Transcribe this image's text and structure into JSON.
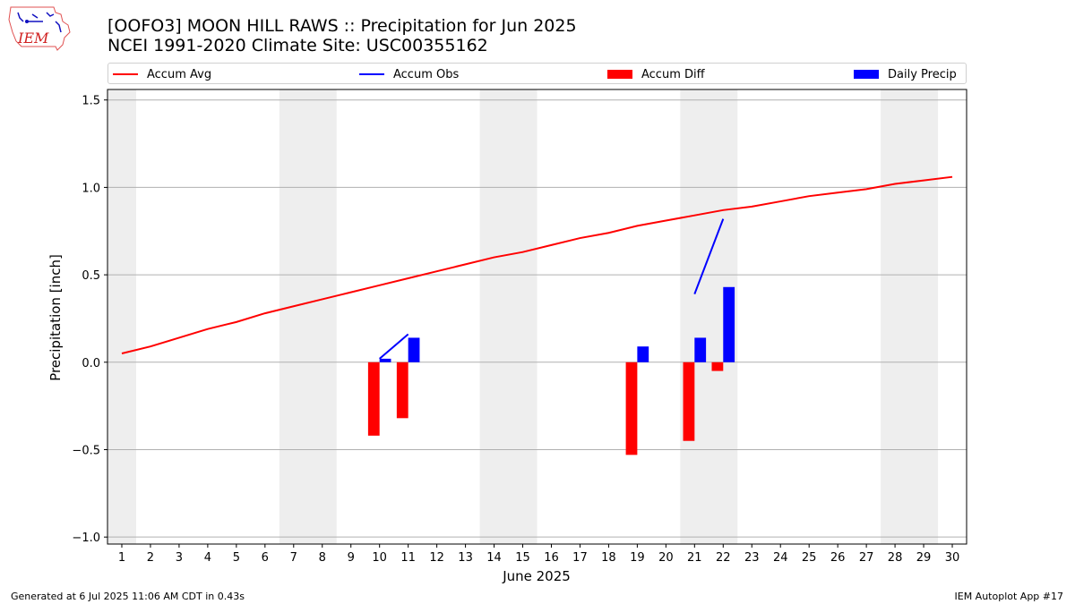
{
  "header": {
    "title_line1": "[OOFO3] MOON HILL RAWS :: Precipitation for Jun 2025",
    "title_line2": "NCEI 1991-2020 Climate Site: USC00355162",
    "logo_text": "IEM"
  },
  "footer": {
    "left": "Generated at 6 Jul 2025 11:06 AM CDT in 0.43s",
    "right": "IEM Autoplot App #17"
  },
  "colors": {
    "accum_avg": "#ff0000",
    "accum_obs": "#0000ff",
    "accum_diff": "#ff0000",
    "daily_precip": "#0000ff",
    "weekend_band": "#eeeeee",
    "grid": "#b0b0b0"
  },
  "chart_data": {
    "type": "bar",
    "xlabel": "June 2025",
    "ylabel": "Precipitation [inch]",
    "xlim": [
      0.5,
      30.5
    ],
    "ylim": [
      -1.04,
      1.56
    ],
    "x_ticks": [
      1,
      2,
      3,
      4,
      5,
      6,
      7,
      8,
      9,
      10,
      11,
      12,
      13,
      14,
      15,
      16,
      17,
      18,
      19,
      20,
      21,
      22,
      23,
      24,
      25,
      26,
      27,
      28,
      29,
      30
    ],
    "y_ticks": [
      -1.0,
      -0.5,
      0.0,
      0.5,
      1.0,
      1.5
    ],
    "y_tick_labels": [
      "−1.0",
      "−0.5",
      "0.0",
      "0.5",
      "1.0",
      "1.5"
    ],
    "grid": "horizontal",
    "legend_placement": "top",
    "weekend_bands": [
      [
        0.5,
        1.5
      ],
      [
        6.5,
        8.5
      ],
      [
        13.5,
        15.5
      ],
      [
        20.5,
        22.5
      ],
      [
        27.5,
        29.5
      ]
    ],
    "series": [
      {
        "name": "Accum Avg",
        "kind": "line",
        "x": [
          1,
          2,
          3,
          4,
          5,
          6,
          7,
          8,
          9,
          10,
          11,
          12,
          13,
          14,
          15,
          16,
          17,
          18,
          19,
          20,
          21,
          22,
          23,
          24,
          25,
          26,
          27,
          28,
          29,
          30
        ],
        "values": [
          0.05,
          0.09,
          0.14,
          0.19,
          0.23,
          0.28,
          0.32,
          0.36,
          0.4,
          0.44,
          0.48,
          0.52,
          0.56,
          0.6,
          0.63,
          0.67,
          0.71,
          0.74,
          0.78,
          0.81,
          0.84,
          0.87,
          0.89,
          0.92,
          0.95,
          0.97,
          0.99,
          1.02,
          1.04,
          1.06
        ]
      },
      {
        "name": "Accum Obs",
        "kind": "line",
        "segments": [
          {
            "x": [
              10,
              11
            ],
            "values": [
              0.02,
              0.16
            ]
          },
          {
            "x": [
              21,
              22
            ],
            "values": [
              0.39,
              0.82
            ]
          }
        ]
      },
      {
        "name": "Accum Diff",
        "kind": "bar",
        "x": [
          10,
          11,
          19,
          21,
          22
        ],
        "values": [
          -0.42,
          -0.32,
          -0.53,
          -0.45,
          -0.05
        ]
      },
      {
        "name": "Daily Precip",
        "kind": "bar",
        "x": [
          10,
          11,
          19,
          21,
          22
        ],
        "values": [
          0.02,
          0.14,
          0.09,
          0.14,
          0.43
        ]
      }
    ]
  }
}
